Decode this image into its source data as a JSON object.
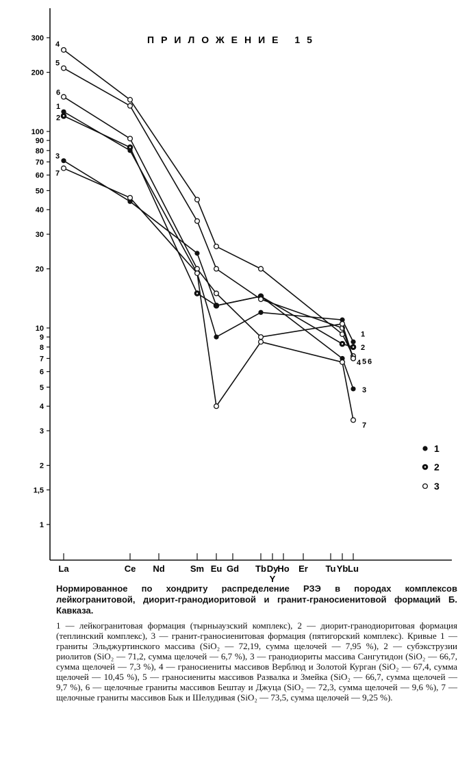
{
  "chart_data": {
    "type": "line",
    "title": "ПРИЛОЖЕНИЕ 15",
    "yscale": "log",
    "ylim": [
      0.7,
      400
    ],
    "yticks": [
      1,
      1.5,
      2,
      3,
      4,
      5,
      6,
      7,
      8,
      9,
      10,
      20,
      30,
      40,
      50,
      60,
      70,
      80,
      90,
      100,
      200,
      300
    ],
    "ytick_labels": [
      "1",
      "1,5",
      "2",
      "3",
      "4",
      "5",
      "6",
      "7",
      "8",
      "9",
      "10",
      "20",
      "30",
      "40",
      "50",
      "60",
      "70",
      "80",
      "90",
      "100",
      "200",
      "300"
    ],
    "xlabel": "",
    "ylabel": "",
    "categories": [
      "La",
      "Ce",
      "Nd",
      "Sm",
      "Eu",
      "Gd",
      "Tb",
      "Dy",
      "Ho",
      "Er",
      "Tu",
      "Yb",
      "Lu"
    ],
    "x_extra_label": "Y",
    "series": [
      {
        "name": "1",
        "marker": "filled",
        "values": [
          126,
          80,
          null,
          19,
          9,
          null,
          12,
          null,
          null,
          null,
          null,
          11,
          8.5
        ]
      },
      {
        "name": "2",
        "marker": "dotted",
        "values": [
          120,
          83,
          null,
          15,
          13,
          null,
          14.5,
          null,
          null,
          null,
          null,
          8.3,
          8
        ]
      },
      {
        "name": "3",
        "marker": "filled",
        "values": [
          71,
          44,
          null,
          24,
          13,
          null,
          14.5,
          null,
          null,
          null,
          null,
          7,
          4.9
        ]
      },
      {
        "name": "4",
        "marker": "open",
        "values": [
          260,
          145,
          null,
          45,
          26,
          null,
          20,
          null,
          null,
          null,
          null,
          9.3,
          7.2
        ]
      },
      {
        "name": "5",
        "marker": "open",
        "values": [
          210,
          135,
          null,
          35,
          20,
          null,
          14,
          null,
          null,
          null,
          null,
          10,
          7
        ]
      },
      {
        "name": "6",
        "marker": "open",
        "values": [
          150,
          92,
          null,
          20,
          15,
          null,
          9,
          null,
          null,
          null,
          null,
          10.5,
          7
        ]
      },
      {
        "name": "7",
        "marker": "open",
        "values": [
          65,
          46,
          null,
          19,
          4,
          null,
          8.5,
          null,
          null,
          null,
          null,
          6.7,
          3.4
        ]
      }
    ],
    "legend": [
      {
        "label": "1",
        "marker": "filled"
      },
      {
        "label": "2",
        "marker": "dotted"
      },
      {
        "label": "3",
        "marker": "open"
      }
    ],
    "legend_position": "right"
  },
  "caption": {
    "title": "Нормированное по хондриту распределение РЗЭ в породах комплексов лейкогранитовой, диорит-гранодиоритовой и гранит-граносиенитовой формаций Б. Кавказа.",
    "body": "1 — лейкогранитовая формация (тырныаузский комплекс), 2 — диорит-гранодиоритовая формация (теплинский комплекс), 3 — гранит-граносиенитовая формация (пятигорский комплекс). Кривые 1 — граниты Эльджуртинского массива (SiO₂ — 72,19, сумма щелочей — 7,95 %), 2 — субэкструзии риолитов (SiO₂ — 71,2, сумма щелочей — 6,7 %), 3 — гранодиориты массива Сангутидон (SiO₂ — 66,7, сумма щелочей — 7,3 %), 4 — граносиениты массивов Верблюд и Золотой Курган (SiO₂ — 67,4, сумма щелочей — 10,45 %), 5 — граносиениты массивов Развалка и Змейка (SiO₂ — 66,7, сумма щелочей — 9,7 %), 6 — щелочные граниты массивов Бештау и Джуца (SiO₂ — 72,3, сумма щелочей — 9,6 %), 7 — щелочные граниты массивов Бык и Шелудивая (SiO₂ — 73,5, сумма щелочей — 9,25 %)."
  }
}
